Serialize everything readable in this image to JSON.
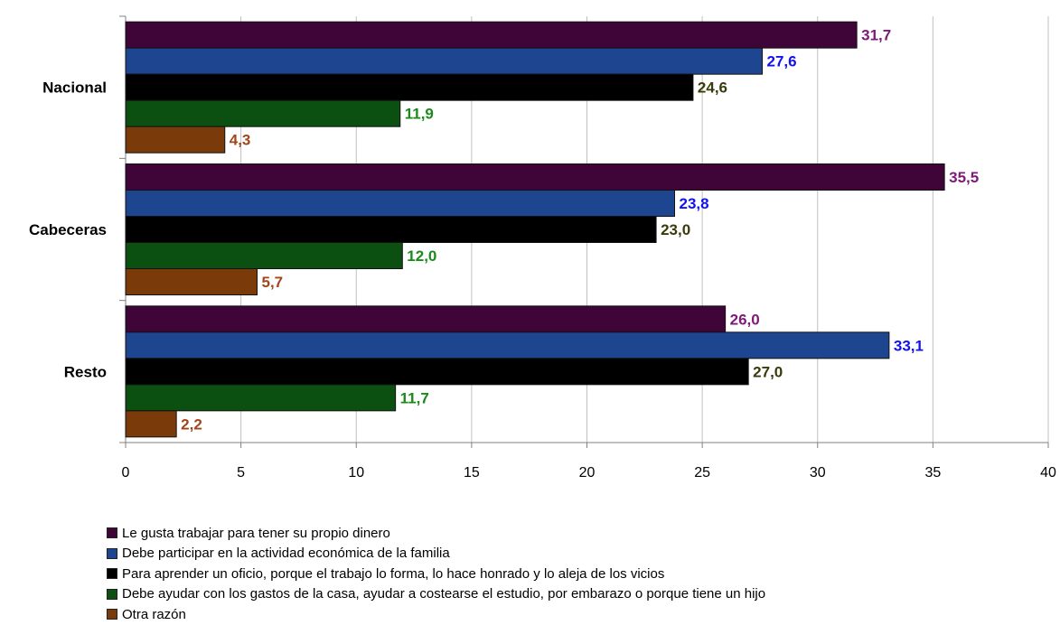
{
  "chart_data": {
    "type": "bar",
    "orientation": "horizontal",
    "categories": [
      "Nacional",
      "Cabeceras",
      "Resto"
    ],
    "series": [
      {
        "name": "Le gusta trabajar para tener su propio dinero",
        "values": [
          31.7,
          35.5,
          26.0
        ],
        "labels": [
          "31,7",
          "35,5",
          "26,0"
        ],
        "color": "#3f0538",
        "label_color": "#7d1a78"
      },
      {
        "name": "Debe participar en la actividad económica de la familia",
        "values": [
          27.6,
          23.8,
          33.1
        ],
        "labels": [
          "27,6",
          "23,8",
          "33,1"
        ],
        "color": "#1e4690",
        "label_color": "#1212ee"
      },
      {
        "name": "Para aprender un oficio, porque el trabajo lo forma, lo hace honrado y lo aleja de los vicios",
        "values": [
          24.6,
          23.0,
          27.0
        ],
        "labels": [
          "24,6",
          "23,0",
          "27,0"
        ],
        "color": "#000000",
        "label_color": "#3a3a0a"
      },
      {
        "name": "Debe ayudar con los gastos de la casa, ayudar a costearse el estudio, por embarazo o porque tiene un hijo",
        "values": [
          11.9,
          12.0,
          11.7
        ],
        "labels": [
          "11,9",
          "12,0",
          "11,7"
        ],
        "color": "#0b5010",
        "label_color": "#1a8a1a"
      },
      {
        "name": "Otra razón",
        "values": [
          4.3,
          5.7,
          2.2
        ],
        "labels": [
          "4,3",
          "5,7",
          "2,2"
        ],
        "color": "#7a3a0a",
        "label_color": "#a0461a"
      }
    ],
    "xlim": [
      0,
      40
    ],
    "x_ticks": [
      0,
      5,
      10,
      15,
      20,
      25,
      30,
      35,
      40
    ],
    "x_tick_labels": [
      "0",
      "5",
      "10",
      "15",
      "20",
      "25",
      "30",
      "35",
      "40"
    ],
    "grid": "vertical",
    "legend_position": "bottom"
  }
}
